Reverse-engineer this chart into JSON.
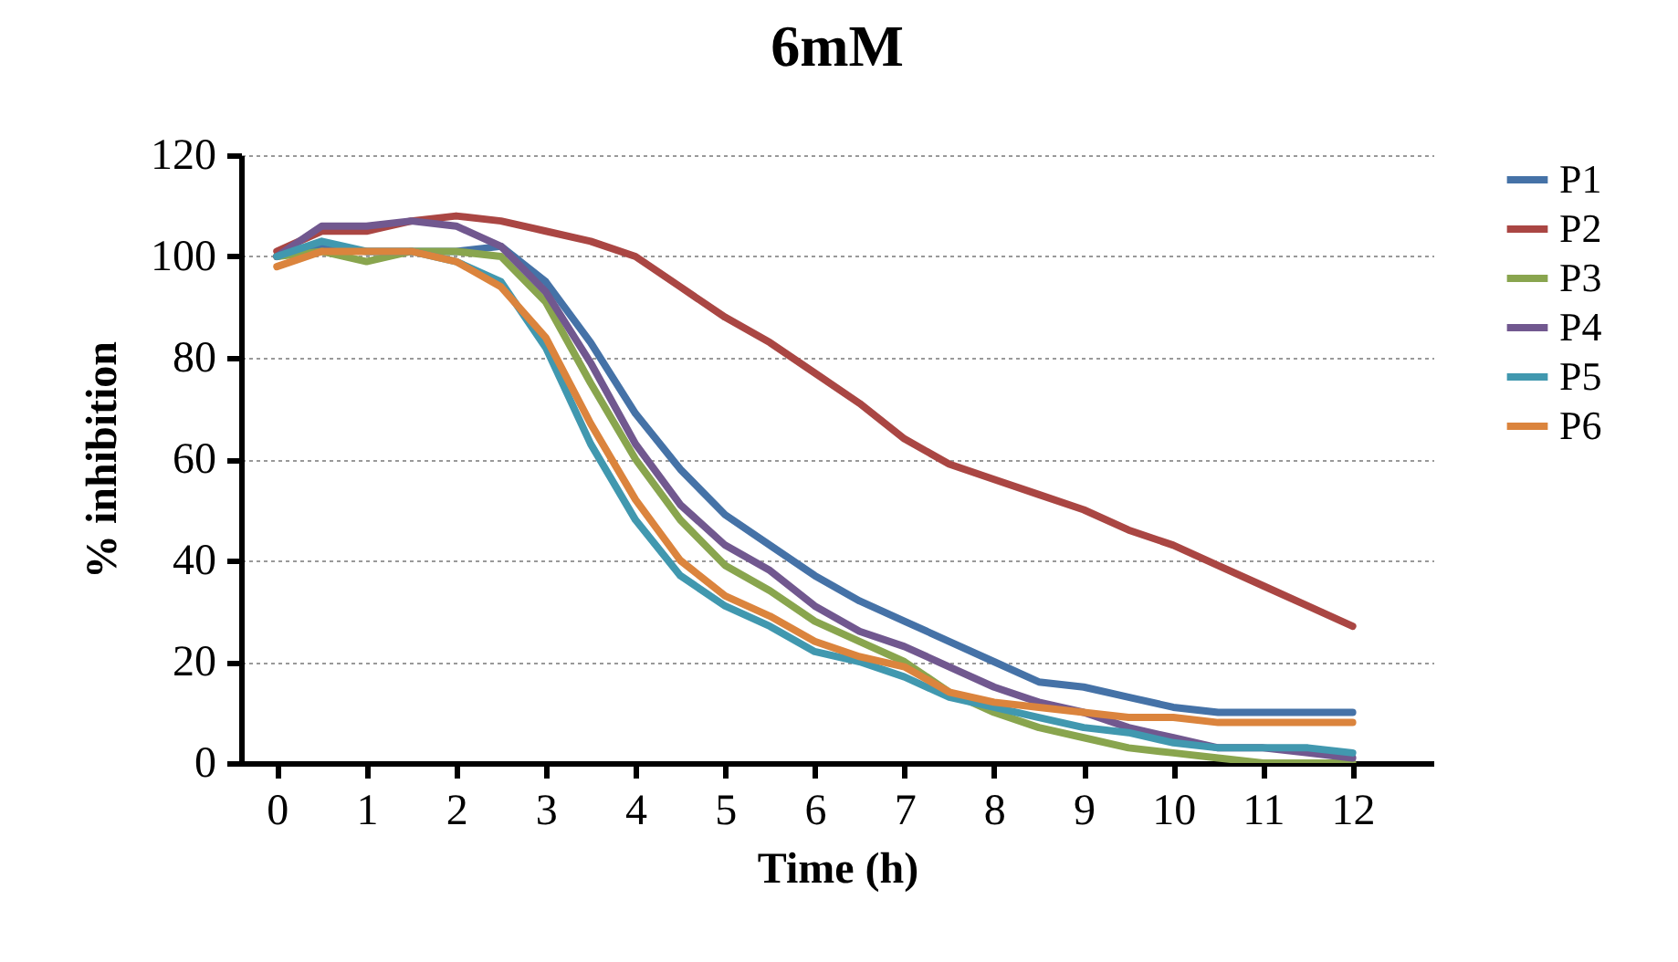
{
  "chart_data": {
    "type": "line",
    "title": "6mM",
    "xlabel": "Time (h)",
    "ylabel": "% inhibition",
    "x": [
      0,
      0.5,
      1,
      1.5,
      2,
      2.5,
      3,
      3.5,
      4,
      4.5,
      5,
      5.5,
      6,
      6.5,
      7,
      7.5,
      8,
      8.5,
      9,
      9.5,
      10,
      10.5,
      11,
      11.5,
      12
    ],
    "series": [
      {
        "name": "P1",
        "color": "#4572a7",
        "values": [
          100,
          102,
          101,
          101,
          101,
          102,
          95,
          83,
          69,
          58,
          49,
          43,
          37,
          32,
          28,
          24,
          20,
          16,
          15,
          13,
          11,
          10,
          10,
          10,
          10
        ]
      },
      {
        "name": "P2",
        "color": "#aa4643",
        "values": [
          101,
          105,
          105,
          107,
          108,
          107,
          105,
          103,
          100,
          94,
          88,
          83,
          77,
          71,
          64,
          59,
          56,
          53,
          50,
          46,
          43,
          39,
          35,
          31,
          27
        ]
      },
      {
        "name": "P3",
        "color": "#89a54e",
        "values": [
          100,
          101,
          99,
          101,
          101,
          100,
          91,
          75,
          60,
          48,
          39,
          34,
          28,
          24,
          20,
          14,
          10,
          7,
          5,
          3,
          2,
          1,
          0,
          0,
          0
        ]
      },
      {
        "name": "P4",
        "color": "#71588f",
        "values": [
          100,
          106,
          106,
          107,
          106,
          102,
          93,
          79,
          63,
          51,
          43,
          38,
          31,
          26,
          23,
          19,
          15,
          12,
          10,
          7,
          5,
          3,
          3,
          2,
          1
        ]
      },
      {
        "name": "P5",
        "color": "#4198af",
        "values": [
          100,
          103,
          101,
          101,
          99,
          95,
          82,
          63,
          48,
          37,
          31,
          27,
          22,
          20,
          17,
          13,
          11,
          9,
          7,
          6,
          4,
          3,
          3,
          3,
          2
        ]
      },
      {
        "name": "P6",
        "color": "#db843d",
        "values": [
          98,
          101,
          101,
          101,
          99,
          94,
          84,
          67,
          52,
          40,
          33,
          29,
          24,
          21,
          19,
          14,
          12,
          11,
          10,
          9,
          9,
          8,
          8,
          8,
          8
        ]
      }
    ],
    "xlim": [
      -0.4,
      12.9
    ],
    "xticks": [
      0,
      1,
      2,
      3,
      4,
      5,
      6,
      7,
      8,
      9,
      10,
      11,
      12
    ],
    "ylim": [
      0,
      120
    ],
    "yticks": [
      0,
      20,
      40,
      60,
      80,
      100,
      120
    ],
    "grid": "y",
    "legend": "right",
    "marker": "none",
    "line_style": "solid"
  }
}
